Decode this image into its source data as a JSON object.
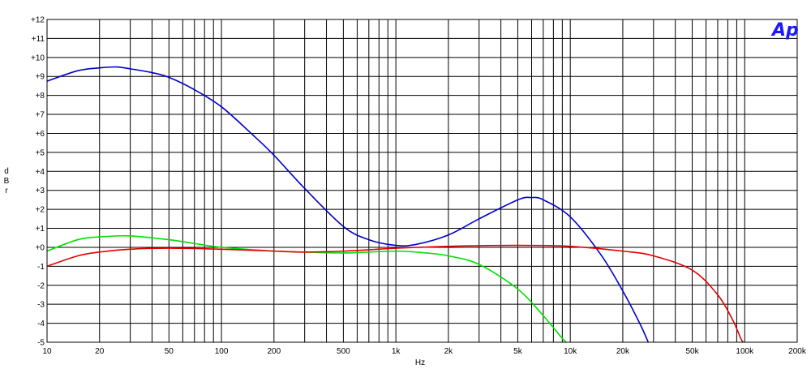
{
  "chart_data": {
    "type": "line",
    "title": "",
    "logo": "Ap",
    "xlabel": "Hz",
    "ylabel": "d B r",
    "xscale": "log",
    "xlim": [
      10,
      200000
    ],
    "ylim": [
      -5,
      12
    ],
    "grid": true,
    "x_tick_labels": [
      {
        "value": 10,
        "label": "10"
      },
      {
        "value": 20,
        "label": "20"
      },
      {
        "value": 50,
        "label": "50"
      },
      {
        "value": 100,
        "label": "100"
      },
      {
        "value": 200,
        "label": "200"
      },
      {
        "value": 500,
        "label": "500"
      },
      {
        "value": 1000,
        "label": "1k"
      },
      {
        "value": 2000,
        "label": "2k"
      },
      {
        "value": 5000,
        "label": "5k"
      },
      {
        "value": 10000,
        "label": "10k"
      },
      {
        "value": 20000,
        "label": "20k"
      },
      {
        "value": 50000,
        "label": "50k"
      },
      {
        "value": 100000,
        "label": "100k"
      },
      {
        "value": 200000,
        "label": "200k"
      }
    ],
    "y_tick_labels": [
      {
        "value": 12,
        "label": "+12"
      },
      {
        "value": 11,
        "label": "+11"
      },
      {
        "value": 10,
        "label": "+10"
      },
      {
        "value": 9,
        "label": "+9"
      },
      {
        "value": 8,
        "label": "+8"
      },
      {
        "value": 7,
        "label": "+7"
      },
      {
        "value": 6,
        "label": "+6"
      },
      {
        "value": 5,
        "label": "+5"
      },
      {
        "value": 4,
        "label": "+4"
      },
      {
        "value": 3,
        "label": "+3"
      },
      {
        "value": 2,
        "label": "+2"
      },
      {
        "value": 1,
        "label": "+1"
      },
      {
        "value": 0,
        "label": "+0"
      },
      {
        "value": -1,
        "label": "-1"
      },
      {
        "value": -2,
        "label": "-2"
      },
      {
        "value": -3,
        "label": "-3"
      },
      {
        "value": -4,
        "label": "-4"
      },
      {
        "value": -5,
        "label": "-5"
      }
    ],
    "series": [
      {
        "color": "#0000c8",
        "points": [
          [
            10,
            8.75
          ],
          [
            15,
            9.3
          ],
          [
            20,
            9.45
          ],
          [
            25,
            9.5
          ],
          [
            30,
            9.4
          ],
          [
            40,
            9.2
          ],
          [
            50,
            8.95
          ],
          [
            70,
            8.3
          ],
          [
            100,
            7.4
          ],
          [
            150,
            5.95
          ],
          [
            200,
            4.85
          ],
          [
            300,
            3.1
          ],
          [
            500,
            1.1
          ],
          [
            700,
            0.4
          ],
          [
            1000,
            0.1
          ],
          [
            1300,
            0.15
          ],
          [
            2000,
            0.65
          ],
          [
            3000,
            1.5
          ],
          [
            5000,
            2.5
          ],
          [
            6000,
            2.62
          ],
          [
            7000,
            2.5
          ],
          [
            10000,
            1.6
          ],
          [
            15000,
            -0.4
          ],
          [
            20000,
            -2.3
          ],
          [
            25000,
            -4.0
          ],
          [
            28000,
            -5.0
          ]
        ]
      },
      {
        "color": "#00e000",
        "points": [
          [
            10,
            -0.2
          ],
          [
            15,
            0.4
          ],
          [
            20,
            0.55
          ],
          [
            30,
            0.6
          ],
          [
            50,
            0.4
          ],
          [
            70,
            0.2
          ],
          [
            100,
            0.0
          ],
          [
            200,
            -0.2
          ],
          [
            300,
            -0.25
          ],
          [
            500,
            -0.3
          ],
          [
            1000,
            -0.2
          ],
          [
            1500,
            -0.3
          ],
          [
            2000,
            -0.45
          ],
          [
            3000,
            -0.9
          ],
          [
            5000,
            -2.2
          ],
          [
            7000,
            -3.6
          ],
          [
            9000,
            -4.8
          ],
          [
            9500,
            -5.0
          ]
        ]
      },
      {
        "color": "#e00000",
        "points": [
          [
            10,
            -1.0
          ],
          [
            15,
            -0.45
          ],
          [
            20,
            -0.25
          ],
          [
            30,
            -0.1
          ],
          [
            50,
            -0.05
          ],
          [
            100,
            -0.1
          ],
          [
            200,
            -0.2
          ],
          [
            300,
            -0.25
          ],
          [
            500,
            -0.2
          ],
          [
            1000,
            -0.05
          ],
          [
            2000,
            0.05
          ],
          [
            5000,
            0.1
          ],
          [
            10000,
            0.05
          ],
          [
            20000,
            -0.2
          ],
          [
            30000,
            -0.45
          ],
          [
            50000,
            -1.2
          ],
          [
            70000,
            -2.5
          ],
          [
            85000,
            -3.8
          ],
          [
            95000,
            -4.8
          ],
          [
            98000,
            -5.0
          ]
        ]
      }
    ]
  }
}
